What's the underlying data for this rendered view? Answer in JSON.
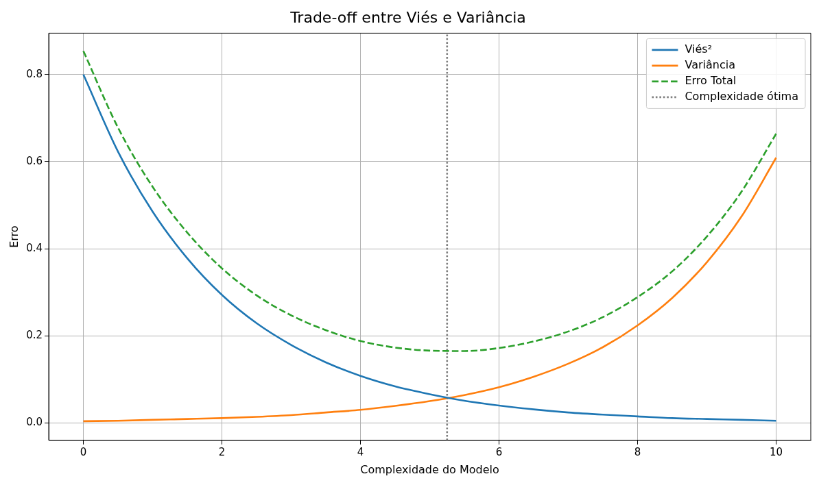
{
  "chart_data": {
    "type": "line",
    "title": "Trade-off entre Viés e Variância",
    "xlabel": "Complexidade do Modelo",
    "ylabel": "Erro",
    "x": [
      0,
      0.5,
      1,
      1.5,
      2,
      2.5,
      3,
      3.5,
      4,
      4.5,
      5,
      5.5,
      6,
      6.5,
      7,
      7.5,
      8,
      8.5,
      9,
      9.5,
      10
    ],
    "series": [
      {
        "name": "Viés²",
        "color": "#1f77b4",
        "line_style": "solid",
        "values": [
          0.8,
          0.623,
          0.485,
          0.378,
          0.294,
          0.229,
          0.179,
          0.139,
          0.108,
          0.084,
          0.066,
          0.051,
          0.04,
          0.031,
          0.024,
          0.019,
          0.015,
          0.011,
          0.009,
          0.007,
          0.005
        ]
      },
      {
        "name": "Variância",
        "color": "#ff7f0e",
        "line_style": "solid",
        "values": [
          0.004,
          0.005,
          0.007,
          0.009,
          0.011,
          0.014,
          0.018,
          0.024,
          0.03,
          0.039,
          0.05,
          0.064,
          0.082,
          0.106,
          0.136,
          0.174,
          0.224,
          0.287,
          0.369,
          0.474,
          0.609
        ]
      },
      {
        "name": "Erro Total",
        "color": "#2ca02c",
        "line_style": "dashed",
        "values": [
          0.854,
          0.678,
          0.542,
          0.437,
          0.355,
          0.293,
          0.247,
          0.213,
          0.188,
          0.173,
          0.166,
          0.165,
          0.172,
          0.187,
          0.21,
          0.243,
          0.289,
          0.348,
          0.428,
          0.531,
          0.664
        ]
      },
      {
        "name": "Complexidade ótima",
        "color": "#808080",
        "line_style": "dotted",
        "x": [
          5.25,
          5.25
        ],
        "values": [
          -0.04,
          0.895
        ]
      }
    ],
    "xlim": [
      -0.5,
      10.5
    ],
    "xticks": [
      0,
      2,
      4,
      6,
      8,
      10
    ],
    "ylim": [
      -0.04,
      0.895
    ],
    "yticks": [
      {
        "value": 0,
        "label": "0.0"
      },
      0.2,
      0.4,
      0.6,
      0.8
    ],
    "grid": true,
    "legend": "top right",
    "marker": "none"
  }
}
